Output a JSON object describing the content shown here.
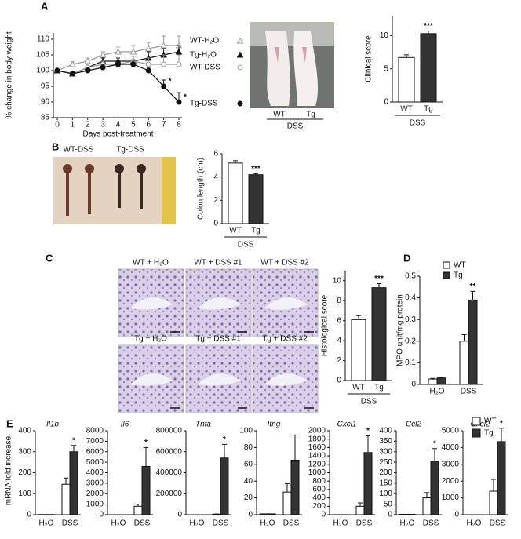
{
  "panel_labels": [
    "A",
    "B",
    "C",
    "D",
    "E"
  ],
  "photo_A": {
    "labels": [
      "WT",
      "Tg"
    ],
    "group": "DSS"
  },
  "photo_B": {
    "labels": [
      "WT-DSS",
      "Tg-DSS"
    ]
  },
  "histology": {
    "labels": [
      "WT + H₂O",
      "WT + DSS #1",
      "WT + DSS #2",
      "Tg + H₂O",
      "Tg + DSS #1",
      "Tg + DSS #2"
    ]
  },
  "chart_data": [
    {
      "type": "line",
      "xlabel": "Days post-treatment",
      "ylabel": "% change in body weight",
      "x": [
        0,
        1,
        2,
        3,
        4,
        5,
        6,
        7,
        8
      ],
      "xlim": [
        0,
        8
      ],
      "xticks": [
        0,
        1,
        2,
        3,
        4,
        5,
        6,
        7,
        8
      ],
      "ylim": [
        85,
        112
      ],
      "yticks": [
        85,
        90,
        95,
        100,
        105,
        110
      ],
      "series": [
        {
          "name": "WT-H₂O",
          "color": "#999999",
          "marker": "triangle",
          "filled": false,
          "values": [
            100,
            102,
            103,
            105,
            106,
            106,
            107,
            108,
            108
          ],
          "errors": [
            0.5,
            0.8,
            1,
            1,
            1.5,
            2,
            2,
            3,
            3
          ]
        },
        {
          "name": "Tg-H₂O",
          "color": "#111111",
          "marker": "triangle",
          "filled": true,
          "values": [
            100,
            99,
            101,
            103,
            103,
            103,
            104,
            105,
            106
          ],
          "errors": [
            0.5,
            0.8,
            1,
            1,
            1,
            1.5,
            2,
            2,
            2
          ]
        },
        {
          "name": "WT-DSS",
          "color": "#999999",
          "marker": "circle",
          "filled": false,
          "values": [
            100,
            99,
            101,
            102,
            102,
            103,
            102,
            102,
            102
          ],
          "errors": [
            0.5,
            0.8,
            1,
            1,
            1,
            1.5,
            2,
            3,
            3
          ]
        },
        {
          "name": "Tg-DSS",
          "color": "#111111",
          "marker": "circle",
          "filled": true,
          "values": [
            100,
            99,
            100,
            101,
            102,
            102,
            100,
            95,
            90
          ],
          "errors": [
            0.5,
            0.8,
            1,
            1,
            1,
            1,
            1,
            2,
            3
          ],
          "significance": [
            null,
            null,
            null,
            null,
            null,
            null,
            null,
            "*",
            "*"
          ]
        }
      ]
    },
    {
      "type": "bar",
      "ylabel": "Clinical score",
      "categories": [
        "WT",
        "Tg"
      ],
      "group_label": "DSS",
      "values": [
        6.7,
        10.3
      ],
      "errors": [
        0.4,
        0.4
      ],
      "colors": [
        "#ffffff",
        "#333333"
      ],
      "significance": [
        null,
        "***"
      ],
      "ylim": [
        0,
        13
      ],
      "yticks": [
        0,
        5,
        10
      ]
    },
    {
      "type": "bar",
      "ylabel": "Colon length (cm)",
      "categories": [
        "WT",
        "Tg"
      ],
      "group_label": "DSS",
      "values": [
        5.2,
        4.2
      ],
      "errors": [
        0.2,
        0.1
      ],
      "colors": [
        "#ffffff",
        "#333333"
      ],
      "significance": [
        null,
        "***"
      ],
      "ylim": [
        0,
        6
      ],
      "yticks": [
        0,
        2,
        4,
        6
      ]
    },
    {
      "type": "bar",
      "ylabel": "Histological score",
      "categories": [
        "WT",
        "Tg"
      ],
      "group_label": "DSS",
      "values": [
        6.1,
        9.3
      ],
      "errors": [
        0.4,
        0.4
      ],
      "colors": [
        "#ffffff",
        "#333333"
      ],
      "significance": [
        null,
        "***"
      ],
      "ylim": [
        0,
        11
      ],
      "yticks": [
        0,
        2,
        4,
        6,
        8,
        10
      ]
    },
    {
      "type": "grouped-bar",
      "ylabel": "MPO unit/mg protein",
      "categories": [
        "H₂O",
        "DSS"
      ],
      "ylim": [
        0,
        0.5
      ],
      "yticks": [
        0,
        0.1,
        0.2,
        0.3,
        0.4,
        0.5
      ],
      "series": [
        {
          "name": "WT",
          "color": "#ffffff",
          "values": [
            0.025,
            0.2
          ],
          "errors": [
            0.003,
            0.03
          ],
          "significance": [
            null,
            null
          ]
        },
        {
          "name": "Tg",
          "color": "#333333",
          "values": [
            0.03,
            0.39
          ],
          "errors": [
            0.003,
            0.04
          ],
          "significance": [
            null,
            "**"
          ]
        }
      ]
    },
    {
      "type": "multi-bar",
      "ylabel": "mRNA fold increase",
      "categories": [
        "H₂O",
        "DSS"
      ],
      "series": [
        {
          "name": "WT",
          "color": "#ffffff"
        },
        {
          "name": "Tg",
          "color": "#333333"
        }
      ],
      "panels": [
        {
          "title": "Il1b",
          "ylim": [
            0,
            400
          ],
          "yticks": [
            0,
            100,
            200,
            300,
            400
          ],
          "series": [
            {
              "values": [
                1,
                145
              ],
              "errors": [
                0,
                30
              ],
              "significance": [
                null,
                null
              ]
            },
            {
              "values": [
                1,
                300
              ],
              "errors": [
                0,
                30
              ],
              "significance": [
                null,
                "*"
              ]
            }
          ]
        },
        {
          "title": "Il6",
          "ylim": [
            0,
            8000
          ],
          "yticks": [
            0,
            1000,
            2000,
            3000,
            4000,
            5000,
            6000,
            7000,
            8000
          ],
          "series": [
            {
              "values": [
                1,
                800
              ],
              "errors": [
                0,
                200
              ],
              "significance": [
                null,
                null
              ]
            },
            {
              "values": [
                1,
                4600
              ],
              "errors": [
                0,
                1800
              ],
              "significance": [
                null,
                "*"
              ]
            }
          ]
        },
        {
          "title": "Tnfa",
          "ylim": [
            0,
            800000
          ],
          "yticks": [
            0,
            200000,
            400000,
            600000,
            800000
          ],
          "series": [
            {
              "values": [
                1,
                5000
              ],
              "errors": [
                0,
                2000
              ],
              "significance": [
                null,
                null
              ]
            },
            {
              "values": [
                1,
                540000
              ],
              "errors": [
                0,
                130000
              ],
              "significance": [
                null,
                "*"
              ]
            }
          ]
        },
        {
          "title": "Ifng",
          "ylim": [
            0,
            100
          ],
          "yticks": [
            0,
            20,
            40,
            60,
            80,
            100
          ],
          "series": [
            {
              "values": [
                1,
                27
              ],
              "errors": [
                0,
                10
              ],
              "significance": [
                null,
                null
              ]
            },
            {
              "values": [
                1,
                65
              ],
              "errors": [
                0,
                30
              ],
              "significance": [
                null,
                null
              ]
            }
          ]
        },
        {
          "title": "Cxcl1",
          "ylim": [
            0,
            2000
          ],
          "yticks": [
            0,
            200,
            400,
            600,
            800,
            1000,
            1200,
            1400,
            1600,
            1800,
            2000
          ],
          "series": [
            {
              "values": [
                1,
                200
              ],
              "errors": [
                0,
                80
              ],
              "significance": [
                null,
                null
              ]
            },
            {
              "values": [
                1,
                1480
              ],
              "errors": [
                0,
                400
              ],
              "significance": [
                null,
                "*"
              ]
            }
          ]
        },
        {
          "title": "Ccl2",
          "ylim": [
            0,
            400
          ],
          "yticks": [
            0,
            50,
            100,
            150,
            200,
            250,
            300,
            350,
            400
          ],
          "series": [
            {
              "values": [
                2,
                80
              ],
              "errors": [
                0,
                25
              ],
              "significance": [
                null,
                null
              ]
            },
            {
              "values": [
                2,
                255
              ],
              "errors": [
                0,
                60
              ],
              "significance": [
                null,
                "*"
              ]
            }
          ]
        },
        {
          "title": "Cxcl2",
          "ylim": [
            0,
            5000
          ],
          "yticks": [
            0,
            1000,
            2000,
            3000,
            4000,
            5000
          ],
          "series": [
            {
              "values": [
                1,
                1400
              ],
              "errors": [
                0,
                700
              ],
              "significance": [
                null,
                null
              ]
            },
            {
              "values": [
                1,
                4350
              ],
              "errors": [
                0,
                800
              ],
              "significance": [
                null,
                "*"
              ]
            }
          ]
        }
      ]
    }
  ]
}
